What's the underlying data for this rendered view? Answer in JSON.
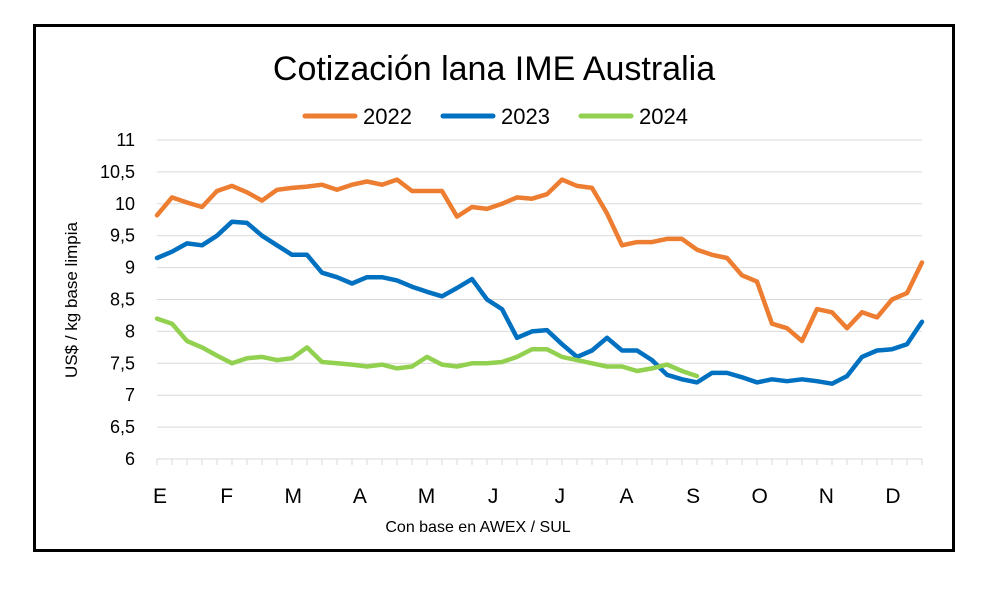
{
  "chart_data": {
    "type": "line",
    "title": "Cotización lana IME Australia",
    "xlabel": "Con base en AWEX / SUL",
    "ylabel": "US$ / kg base limpia",
    "ylim": [
      6,
      11
    ],
    "yticks": [
      "6",
      "6,5",
      "7",
      "7,5",
      "8",
      "8,5",
      "9",
      "9,5",
      "10",
      "10,5",
      "11"
    ],
    "months": [
      "E",
      "F",
      "M",
      "A",
      "M",
      "J",
      "J",
      "A",
      "S",
      "O",
      "N",
      "D"
    ],
    "x_unit": "week",
    "x_range": [
      1,
      52
    ],
    "grid": true,
    "legend_position": "top",
    "series": [
      {
        "name": "2022",
        "color": "#ED7D31",
        "x": [
          1,
          2,
          3,
          4,
          5,
          6,
          7,
          8,
          9,
          10,
          11,
          12,
          13,
          14,
          15,
          16,
          17,
          18,
          19,
          20,
          21,
          22,
          23,
          24,
          25,
          26,
          27,
          28,
          29,
          30,
          31,
          32,
          33,
          34,
          35,
          36,
          37,
          38,
          39,
          40,
          41,
          42,
          43,
          44,
          45,
          46,
          47,
          48,
          49,
          50,
          51,
          52
        ],
        "values": [
          9.82,
          10.1,
          10.02,
          9.95,
          10.2,
          10.28,
          10.18,
          10.05,
          10.22,
          10.25,
          10.27,
          10.3,
          10.22,
          10.3,
          10.35,
          10.3,
          10.38,
          10.2,
          10.2,
          10.2,
          9.8,
          9.95,
          9.92,
          10.0,
          10.1,
          10.08,
          10.15,
          10.38,
          10.28,
          10.25,
          9.85,
          9.35,
          9.4,
          9.4,
          9.45,
          9.45,
          9.28,
          9.2,
          9.15,
          8.88,
          8.78,
          8.12,
          8.05,
          7.85,
          8.35,
          8.3,
          8.05,
          8.3,
          8.22,
          8.5,
          8.6,
          9.08
        ]
      },
      {
        "name": "2023",
        "color": "#0070C0",
        "x": [
          1,
          2,
          3,
          4,
          5,
          6,
          7,
          8,
          9,
          10,
          11,
          12,
          13,
          14,
          15,
          16,
          17,
          18,
          19,
          20,
          21,
          22,
          23,
          24,
          25,
          26,
          27,
          28,
          29,
          30,
          31,
          32,
          33,
          34,
          35,
          36,
          37,
          38,
          39,
          40,
          41,
          42,
          43,
          44,
          45,
          46,
          47,
          48,
          49,
          50,
          51,
          52
        ],
        "values": [
          9.15,
          9.25,
          9.38,
          9.35,
          9.5,
          9.72,
          9.7,
          9.5,
          9.35,
          9.2,
          9.2,
          8.92,
          8.85,
          8.75,
          8.85,
          8.85,
          8.8,
          8.7,
          8.62,
          8.55,
          8.68,
          8.82,
          8.5,
          8.35,
          7.9,
          8.0,
          8.02,
          7.8,
          7.6,
          7.7,
          7.9,
          7.7,
          7.7,
          7.55,
          7.32,
          7.25,
          7.2,
          7.35,
          7.35,
          7.28,
          7.2,
          7.25,
          7.22,
          7.25,
          7.22,
          7.18,
          7.3,
          7.6,
          7.7,
          7.72,
          7.8,
          8.15
        ]
      },
      {
        "name": "2024",
        "color": "#92D050",
        "x": [
          1,
          2,
          3,
          4,
          5,
          6,
          7,
          8,
          9,
          10,
          11,
          12,
          13,
          14,
          15,
          16,
          17,
          18,
          19,
          20,
          21,
          22,
          23,
          24,
          25,
          26,
          27,
          28,
          29,
          30,
          31,
          32,
          33,
          34,
          35,
          36,
          37
        ],
        "values": [
          8.2,
          8.12,
          7.85,
          7.75,
          7.62,
          7.5,
          7.58,
          7.6,
          7.55,
          7.58,
          7.75,
          7.52,
          7.5,
          7.48,
          7.45,
          7.48,
          7.42,
          7.45,
          7.6,
          7.48,
          7.45,
          7.5,
          7.5,
          7.52,
          7.6,
          7.72,
          7.72,
          7.6,
          7.55,
          7.5,
          7.45,
          7.45,
          7.38,
          7.42,
          7.48,
          7.38,
          7.3
        ]
      }
    ]
  }
}
